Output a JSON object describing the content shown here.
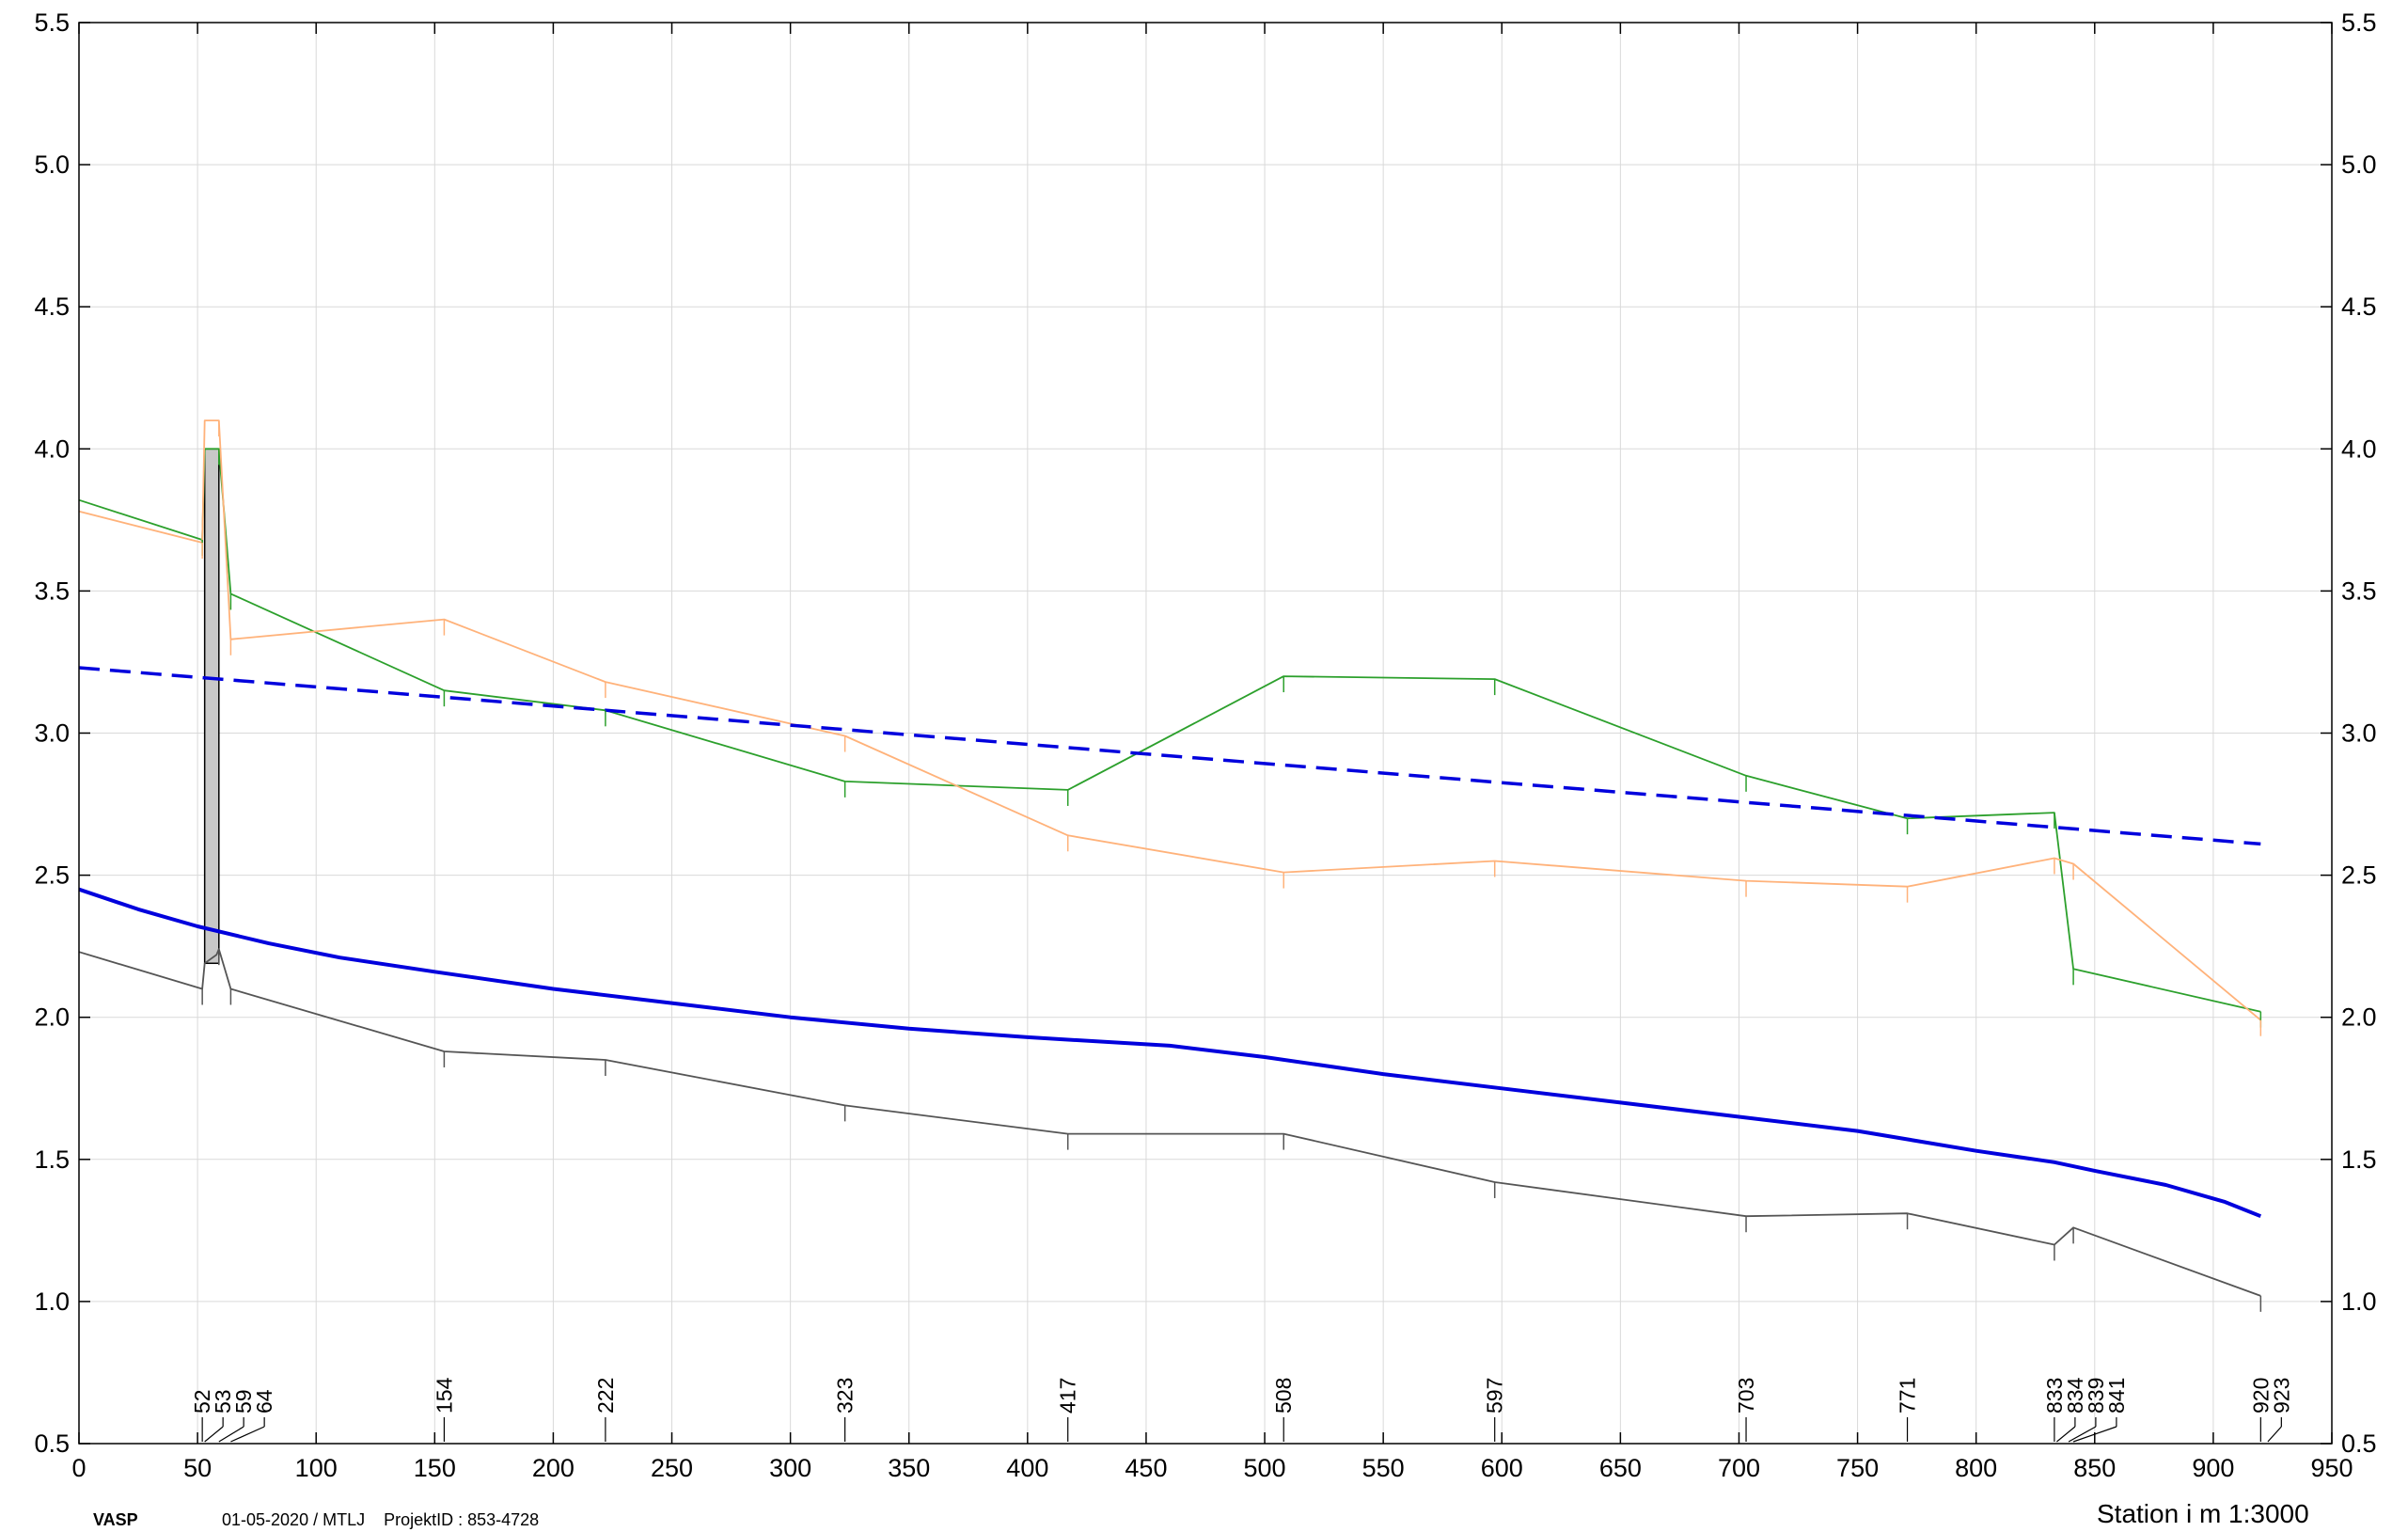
{
  "chart_data": {
    "type": "line",
    "title": "",
    "xlabel": "Station i m  1:3000",
    "ylabel": "",
    "xlim": [
      0,
      950
    ],
    "ylim": [
      0.5,
      5.5
    ],
    "x_ticks": [
      "0",
      "50",
      "100",
      "150",
      "200",
      "250",
      "300",
      "350",
      "400",
      "450",
      "500",
      "550",
      "600",
      "650",
      "700",
      "750",
      "800",
      "850",
      "900",
      "950"
    ],
    "y_ticks": [
      "0.5",
      "1.0",
      "1.5",
      "2.0",
      "2.5",
      "3.0",
      "3.5",
      "4.0",
      "4.5",
      "5.0",
      "5.5"
    ],
    "grid": true,
    "legend": "none",
    "station_labels": [
      {
        "label": "52",
        "x": 52
      },
      {
        "label": "53",
        "x": 53
      },
      {
        "label": "59",
        "x": 59
      },
      {
        "label": "64",
        "x": 64
      },
      {
        "label": "154",
        "x": 154
      },
      {
        "label": "222",
        "x": 222
      },
      {
        "label": "323",
        "x": 323
      },
      {
        "label": "417",
        "x": 417
      },
      {
        "label": "508",
        "x": 508
      },
      {
        "label": "597",
        "x": 597
      },
      {
        "label": "703",
        "x": 703
      },
      {
        "label": "771",
        "x": 771
      },
      {
        "label": "833",
        "x": 833
      },
      {
        "label": "834",
        "x": 834
      },
      {
        "label": "839",
        "x": 839
      },
      {
        "label": "841",
        "x": 841
      },
      {
        "label": "920",
        "x": 920
      },
      {
        "label": "923",
        "x": 923
      }
    ],
    "series": [
      {
        "color": "#2ca02c",
        "style": "thin",
        "x": [
          0,
          52,
          53,
          59,
          64,
          154,
          222,
          323,
          417,
          508,
          597,
          703,
          771,
          833,
          841,
          920
        ],
        "y": [
          3.82,
          3.68,
          4.0,
          4.0,
          3.49,
          3.15,
          3.08,
          2.83,
          2.8,
          3.2,
          3.19,
          2.85,
          2.7,
          2.72,
          2.17,
          2.02
        ]
      },
      {
        "color": "#ffb27a",
        "style": "thin",
        "x": [
          0,
          52,
          53,
          59,
          64,
          154,
          222,
          323,
          417,
          508,
          597,
          703,
          771,
          833,
          841,
          920
        ],
        "y": [
          3.78,
          3.67,
          4.1,
          4.1,
          3.33,
          3.4,
          3.18,
          2.99,
          2.64,
          2.51,
          2.55,
          2.48,
          2.46,
          2.56,
          2.54,
          1.99
        ]
      },
      {
        "color": "#0000dd",
        "style": "dashed",
        "x": [
          0,
          920
        ],
        "y": [
          3.23,
          2.61
        ]
      },
      {
        "color": "#0000dd",
        "style": "thick",
        "x": [
          0,
          25,
          50,
          80,
          110,
          150,
          200,
          250,
          300,
          350,
          400,
          460,
          500,
          550,
          600,
          650,
          700,
          750,
          800,
          833,
          850,
          880,
          905,
          920
        ],
        "y": [
          2.45,
          2.38,
          2.32,
          2.26,
          2.21,
          2.16,
          2.1,
          2.05,
          2.0,
          1.96,
          1.93,
          1.9,
          1.86,
          1.8,
          1.75,
          1.7,
          1.65,
          1.6,
          1.53,
          1.49,
          1.46,
          1.41,
          1.35,
          1.3
        ]
      },
      {
        "color": "#555555",
        "style": "thin",
        "x": [
          0,
          52,
          53,
          58,
          59,
          64,
          154,
          222,
          323,
          417,
          508,
          597,
          703,
          771,
          833,
          841,
          920
        ],
        "y": [
          2.23,
          2.1,
          2.19,
          2.22,
          2.24,
          2.1,
          1.88,
          1.85,
          1.69,
          1.59,
          1.59,
          1.42,
          1.3,
          1.31,
          1.2,
          1.26,
          1.02
        ]
      }
    ],
    "shaft": {
      "x0": 53,
      "x1": 59,
      "ybottom": 2.19,
      "ytop": 4.0,
      "color": "#c8c8c8"
    }
  },
  "footer": {
    "brand": "VASP",
    "info": "01-05-2020 / MTLJ    ProjektID : 853-4728"
  }
}
